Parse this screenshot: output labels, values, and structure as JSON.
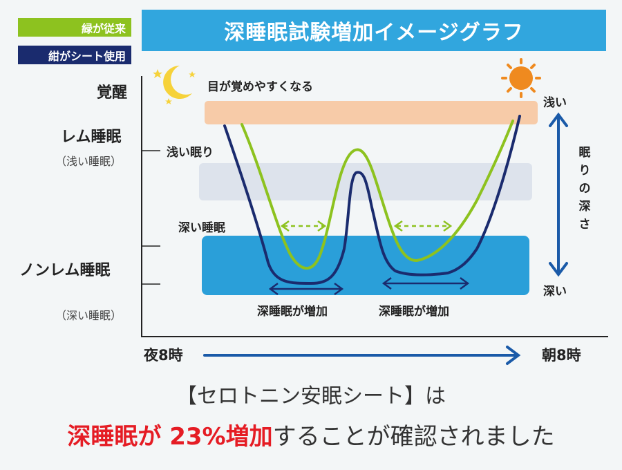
{
  "legend": {
    "green_label": "緑が従来",
    "navy_label": "紺がシート使用",
    "green_color": "#8dc21f",
    "navy_color": "#1a2b6e"
  },
  "title": "深睡眠試験増加イメージグラフ",
  "y_axis": {
    "awake": "覚醒",
    "rem": "レム睡眠",
    "rem_sub": "（浅い睡眠）",
    "nonrem": "ノンレム睡眠",
    "nonrem_sub": "（深い睡眠）"
  },
  "bands": {
    "awake_label": "目が覚めやすくなる",
    "light_label": "浅い眠り",
    "deep_label": "深い睡眠",
    "awake_color": "#f7cba8",
    "light_color": "#dde3ec",
    "deep_color": "#2a9fd9"
  },
  "annotations": {
    "deep_increase_1": "深睡眠が増加",
    "deep_increase_2": "深睡眠が増加"
  },
  "right_scale": {
    "shallow": "浅い",
    "depth": "眠りの深さ",
    "deep": "深い"
  },
  "x_axis": {
    "start": "夜8時",
    "end": "朝8時"
  },
  "icons": {
    "moon": "crescent-moon-icon",
    "sun": "sun-icon"
  },
  "chart_data": {
    "type": "line",
    "x_label_start": "夜8時",
    "x_label_end": "朝8時",
    "y_levels": [
      "覚醒",
      "レム睡眠",
      "ノンレム睡眠"
    ],
    "series": [
      {
        "name": "緑が従来",
        "color": "#8dc21f"
      },
      {
        "name": "紺がシート使用",
        "color": "#1a2b6e"
      }
    ]
  },
  "footer": {
    "line1": "【セロトニン安眠シート】は",
    "line2_highlight": "深睡眠が 23%増加",
    "line2_rest": "することが確認されました"
  }
}
